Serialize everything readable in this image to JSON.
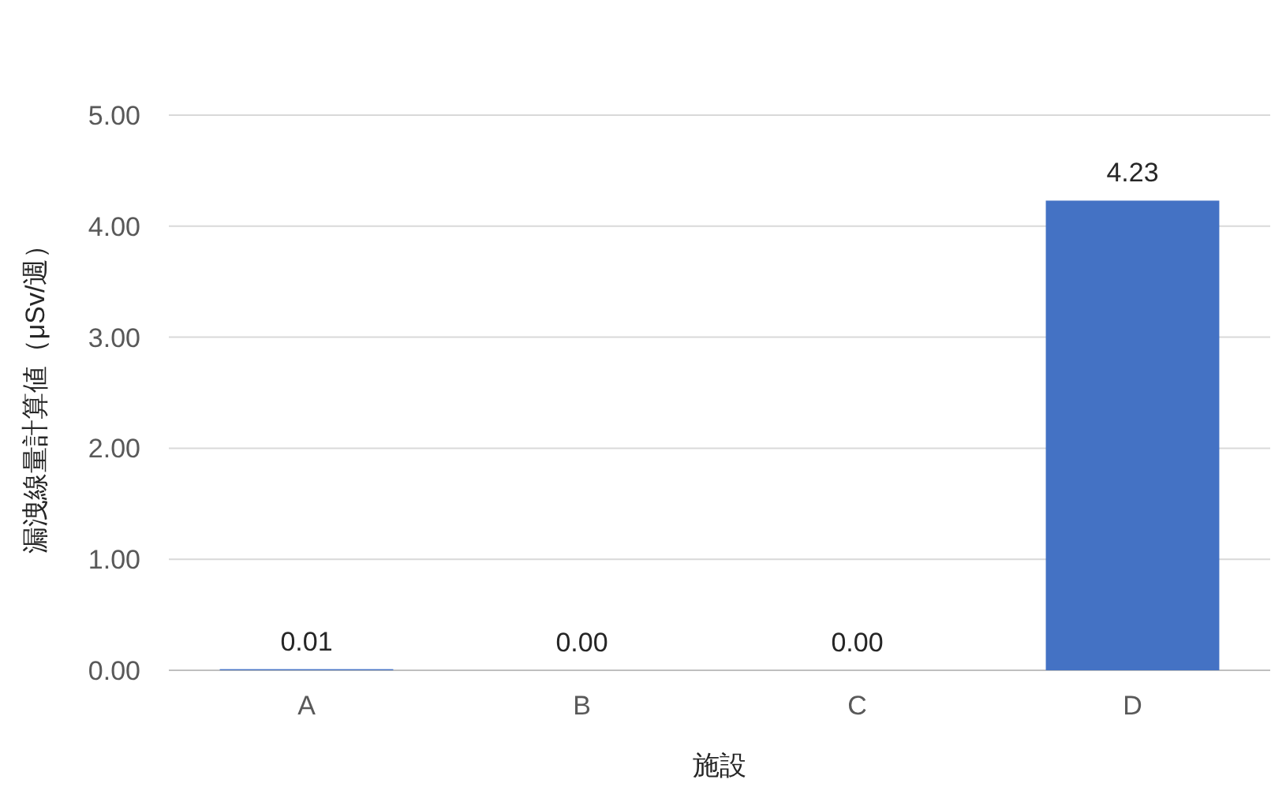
{
  "chart_data": {
    "type": "bar",
    "xlabel": "施設",
    "ylabel": "漏洩線量計算値（μSv/週）",
    "categories": [
      "A",
      "B",
      "C",
      "D"
    ],
    "values": [
      0.01,
      0.0,
      0.0,
      4.23
    ],
    "value_labels": [
      "0.01",
      "0.00",
      "0.00",
      "4.23"
    ],
    "color": "#4472c4",
    "ylim": [
      0,
      5
    ],
    "yticks": [
      {
        "value": 0,
        "label": "0.00"
      },
      {
        "value": 1,
        "label": "1.00"
      },
      {
        "value": 2,
        "label": "2.00"
      },
      {
        "value": 3,
        "label": "3.00"
      },
      {
        "value": 4,
        "label": "4.00"
      },
      {
        "value": 5,
        "label": "5.00"
      }
    ],
    "grid": "y"
  }
}
